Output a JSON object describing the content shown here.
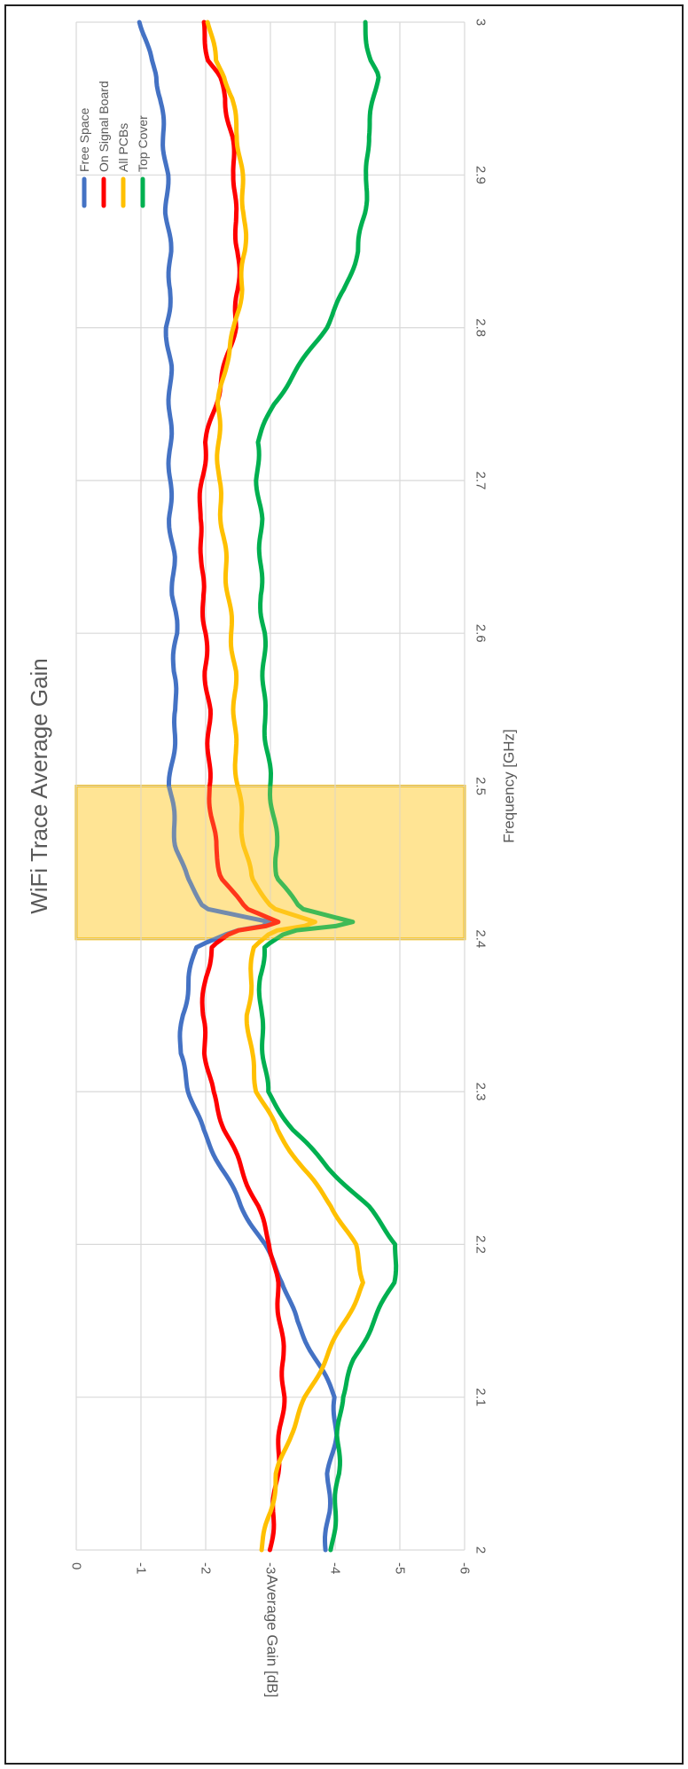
{
  "chart_data": {
    "type": "line",
    "title": "WiFi Trace Average Gain",
    "xlabel": "Frequency [GHz]",
    "ylabel": "Average Gain [dB]",
    "xlim": [
      2.0,
      3.0
    ],
    "ylim": [
      -6,
      0
    ],
    "x_ticks": [
      "2",
      "2.1",
      "2.2",
      "2.3",
      "2.4",
      "2.5",
      "2.6",
      "2.7",
      "2.8",
      "2.9",
      "3"
    ],
    "y_ticks": [
      "0",
      "-1",
      "-2",
      "-3",
      "-4",
      "-5",
      "-6"
    ],
    "grid": true,
    "legend_position": "top-right",
    "highlight_band": {
      "x_range": [
        2.4,
        2.5
      ],
      "color": "#FFD966"
    },
    "colors": {
      "Free Space": "#4472C4",
      "On Signal Board": "#FF0000",
      "All PCBs": "#FFC000",
      "Top Cover": "#00B050"
    },
    "x": [
      2.0,
      2.025,
      2.05,
      2.075,
      2.1,
      2.125,
      2.15,
      2.175,
      2.2,
      2.225,
      2.25,
      2.275,
      2.3,
      2.325,
      2.35,
      2.375,
      2.395,
      2.405,
      2.41,
      2.42,
      2.44,
      2.46,
      2.48,
      2.5,
      2.525,
      2.55,
      2.575,
      2.6,
      2.625,
      2.65,
      2.675,
      2.7,
      2.725,
      2.75,
      2.775,
      2.8,
      2.825,
      2.85,
      2.875,
      2.9,
      2.925,
      2.95,
      2.965,
      2.975,
      3.0
    ],
    "series": [
      {
        "name": "Free Space",
        "values": [
          -3.85,
          -3.9,
          -3.9,
          -4.0,
          -4.0,
          -3.7,
          -3.4,
          -3.2,
          -2.9,
          -2.55,
          -2.25,
          -1.95,
          -1.75,
          -1.6,
          -1.65,
          -1.75,
          -1.85,
          -2.4,
          -3.1,
          -2.0,
          -1.7,
          -1.55,
          -1.5,
          -1.45,
          -1.5,
          -1.55,
          -1.5,
          -1.55,
          -1.5,
          -1.5,
          -1.45,
          -1.45,
          -1.45,
          -1.45,
          -1.45,
          -1.4,
          -1.45,
          -1.45,
          -1.4,
          -1.4,
          -1.35,
          -1.3,
          -1.25,
          -1.15,
          -1.0
        ]
      },
      {
        "name": "On Signal Board",
        "values": [
          -3.0,
          -3.05,
          -3.1,
          -3.15,
          -3.2,
          -3.2,
          -3.15,
          -3.1,
          -3.0,
          -2.8,
          -2.55,
          -2.3,
          -2.1,
          -2.0,
          -1.95,
          -2.0,
          -2.1,
          -2.45,
          -3.2,
          -2.6,
          -2.25,
          -2.15,
          -2.1,
          -2.05,
          -2.05,
          -2.05,
          -2.0,
          -2.0,
          -1.95,
          -1.95,
          -1.9,
          -1.95,
          -2.0,
          -2.15,
          -2.3,
          -2.45,
          -2.5,
          -2.5,
          -2.45,
          -2.45,
          -2.4,
          -2.3,
          -2.2,
          -2.05,
          -1.95
        ]
      },
      {
        "name": "All PCBs",
        "values": [
          -2.85,
          -3.0,
          -3.1,
          -3.3,
          -3.55,
          -3.85,
          -4.15,
          -4.45,
          -4.3,
          -3.95,
          -3.5,
          -3.1,
          -2.8,
          -2.7,
          -2.65,
          -2.7,
          -2.75,
          -3.0,
          -3.75,
          -3.05,
          -2.7,
          -2.6,
          -2.55,
          -2.5,
          -2.45,
          -2.45,
          -2.45,
          -2.4,
          -2.35,
          -2.3,
          -2.25,
          -2.2,
          -2.2,
          -2.2,
          -2.3,
          -2.45,
          -2.55,
          -2.6,
          -2.6,
          -2.55,
          -2.5,
          -2.4,
          -2.3,
          -2.15,
          -2.05
        ]
      },
      {
        "name": "Top Cover",
        "values": [
          -3.95,
          -4.0,
          -4.05,
          -4.05,
          -4.1,
          -4.3,
          -4.6,
          -4.9,
          -4.95,
          -4.5,
          -3.9,
          -3.35,
          -2.95,
          -2.9,
          -2.85,
          -2.85,
          -2.9,
          -3.3,
          -4.4,
          -3.45,
          -3.1,
          -3.1,
          -3.05,
          -3.0,
          -2.95,
          -2.9,
          -2.9,
          -2.9,
          -2.85,
          -2.85,
          -2.85,
          -2.8,
          -2.8,
          -3.05,
          -3.45,
          -3.85,
          -4.15,
          -4.35,
          -4.45,
          -4.5,
          -4.5,
          -4.6,
          -4.65,
          -4.55,
          -4.45
        ]
      }
    ]
  }
}
